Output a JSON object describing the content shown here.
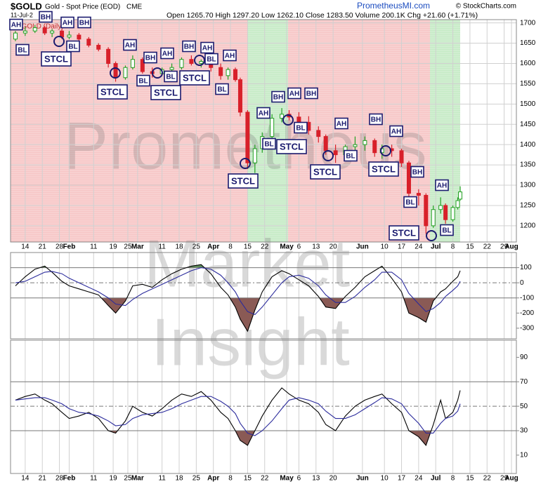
{
  "chart_data": [
    {
      "type": "candlestick",
      "title": "$GOLD",
      "subtitle": "Gold - Spot Price (EOD)",
      "exchange": "CME",
      "date": "11-Jul-2",
      "quote": "Open 1265.70  High 1297.20  Low 1262.10  Close 1283.50  Volume 200.1K  Chg +21.60 (+1.71%)",
      "source": "PrometheusMI.com",
      "credit": "© StockCharts.com",
      "series_name": "$GOLD (Daily)",
      "watermark": [
        "Prometheus",
        "Market",
        "Insight"
      ],
      "annotations": [
        "AH",
        "BL",
        "BH",
        "AH",
        "BH",
        "STCL",
        "BL",
        "STCL",
        "AH",
        "BH",
        "BL",
        "AH",
        "STCL",
        "BL",
        "BH",
        "AH",
        "STCL",
        "BL",
        "AH",
        "BL",
        "STCL",
        "AH",
        "BL",
        "BH",
        "AH",
        "BH",
        "STCL",
        "BL",
        "AH",
        "STCL",
        "BL",
        "BH",
        "STCL",
        "AH",
        "BL",
        "BH",
        "AH",
        "STCL",
        "BL"
      ],
      "x": [
        10,
        14,
        18,
        22,
        25,
        29,
        32,
        36,
        40,
        44,
        48,
        51,
        55,
        58,
        62,
        66,
        70,
        74,
        78,
        82,
        86,
        90,
        94,
        97,
        100,
        102,
        105,
        108,
        111,
        115,
        119,
        122,
        126,
        130,
        134,
        137,
        141,
        145,
        149,
        153,
        157,
        160,
        164,
        168,
        171,
        175,
        178,
        181,
        184,
        186,
        189,
        191,
        192
      ],
      "open": [
        1660,
        1675,
        1680,
        1688,
        1675,
        1680,
        1665,
        1670,
        1660,
        1645,
        1635,
        1600,
        1565,
        1590,
        1610,
        1580,
        1575,
        1585,
        1590,
        1610,
        1600,
        1605,
        1590,
        1570,
        1585,
        1560,
        1480,
        1355,
        1390,
        1420,
        1465,
        1475,
        1468,
        1455,
        1435,
        1420,
        1385,
        1375,
        1395,
        1400,
        1410,
        1380,
        1390,
        1385,
        1355,
        1280,
        1275,
        1200,
        1240,
        1250,
        1215,
        1245,
        1265.7
      ],
      "high": [
        1680,
        1690,
        1695,
        1692,
        1685,
        1685,
        1680,
        1675,
        1665,
        1650,
        1640,
        1605,
        1595,
        1620,
        1615,
        1590,
        1590,
        1600,
        1615,
        1620,
        1610,
        1610,
        1600,
        1590,
        1590,
        1565,
        1485,
        1400,
        1430,
        1475,
        1490,
        1485,
        1480,
        1470,
        1445,
        1425,
        1400,
        1400,
        1420,
        1420,
        1415,
        1400,
        1400,
        1390,
        1360,
        1290,
        1280,
        1250,
        1270,
        1255,
        1250,
        1270,
        1297.2
      ],
      "low": [
        1655,
        1668,
        1675,
        1670,
        1665,
        1660,
        1660,
        1650,
        1640,
        1630,
        1590,
        1555,
        1560,
        1585,
        1575,
        1565,
        1570,
        1580,
        1585,
        1595,
        1590,
        1580,
        1560,
        1560,
        1555,
        1470,
        1340,
        1330,
        1380,
        1410,
        1455,
        1460,
        1445,
        1425,
        1405,
        1375,
        1355,
        1365,
        1385,
        1385,
        1370,
        1365,
        1370,
        1345,
        1270,
        1250,
        1180,
        1195,
        1230,
        1205,
        1210,
        1240,
        1262.1
      ],
      "close": [
        1675,
        1680,
        1688,
        1675,
        1680,
        1665,
        1670,
        1660,
        1645,
        1635,
        1600,
        1565,
        1590,
        1610,
        1580,
        1575,
        1585,
        1590,
        1610,
        1600,
        1605,
        1590,
        1570,
        1585,
        1560,
        1480,
        1355,
        1390,
        1420,
        1465,
        1475,
        1468,
        1455,
        1435,
        1420,
        1385,
        1375,
        1395,
        1400,
        1410,
        1380,
        1390,
        1385,
        1355,
        1280,
        1275,
        1200,
        1240,
        1250,
        1215,
        1245,
        1262,
        1283.5
      ],
      "up_color": "#22a022",
      "down_color": "#d8202a",
      "xlim": [
        8,
        215
      ],
      "ylim": [
        1160,
        1708
      ],
      "xticks": [
        {
          "value": 14,
          "label": "14"
        },
        {
          "value": 21,
          "label": "21"
        },
        {
          "value": 28,
          "label": "28"
        },
        {
          "value": 32,
          "label": "Feb"
        },
        {
          "value": 42,
          "label": "11"
        },
        {
          "value": 50,
          "label": "19"
        },
        {
          "value": 56,
          "label": "25"
        },
        {
          "value": 60,
          "label": "Mar"
        },
        {
          "value": 70,
          "label": "11"
        },
        {
          "value": 77,
          "label": "18"
        },
        {
          "value": 84,
          "label": "25"
        },
        {
          "value": 91,
          "label": "Apr"
        },
        {
          "value": 98,
          "label": "8"
        },
        {
          "value": 105,
          "label": "15"
        },
        {
          "value": 112,
          "label": "22"
        },
        {
          "value": 121,
          "label": "May"
        },
        {
          "value": 126,
          "label": "6"
        },
        {
          "value": 133,
          "label": "13"
        },
        {
          "value": 140,
          "label": "20"
        },
        {
          "value": 152,
          "label": "Jun"
        },
        {
          "value": 161,
          "label": "10"
        },
        {
          "value": 168,
          "label": "17"
        },
        {
          "value": 175,
          "label": "24"
        },
        {
          "value": 182,
          "label": "Jul"
        },
        {
          "value": 189,
          "label": "8"
        },
        {
          "value": 196,
          "label": "15"
        },
        {
          "value": 203,
          "label": "22"
        },
        {
          "value": 210,
          "label": "29"
        },
        {
          "value": 213,
          "label": "Aug"
        }
      ],
      "yticks": [
        1200,
        1250,
        1300,
        1350,
        1400,
        1450,
        1500,
        1550,
        1600,
        1650,
        1700
      ],
      "grid": true
    },
    {
      "type": "line",
      "x": [
        10,
        14,
        18,
        22,
        25,
        29,
        32,
        36,
        40,
        44,
        48,
        51,
        55,
        58,
        62,
        66,
        70,
        74,
        78,
        82,
        86,
        90,
        94,
        97,
        100,
        102,
        105,
        108,
        111,
        115,
        119,
        122,
        126,
        130,
        134,
        137,
        141,
        145,
        149,
        153,
        157,
        160,
        164,
        168,
        171,
        175,
        178,
        181,
        184,
        186,
        189,
        191,
        192
      ],
      "series": [
        {
          "color": "#000000",
          "values": [
            -20,
            40,
            90,
            110,
            70,
            10,
            -20,
            -40,
            -60,
            -80,
            -150,
            -200,
            -120,
            -20,
            -10,
            -30,
            20,
            60,
            90,
            110,
            120,
            60,
            -30,
            -80,
            -160,
            -240,
            -320,
            -180,
            -60,
            40,
            80,
            60,
            20,
            -20,
            -90,
            -160,
            -170,
            -90,
            -30,
            40,
            80,
            110,
            30,
            -60,
            -200,
            -230,
            -260,
            -120,
            -60,
            -40,
            10,
            40,
            80
          ]
        },
        {
          "color": "#2b2b9c",
          "values": [
            0,
            10,
            40,
            70,
            75,
            60,
            30,
            0,
            -30,
            -60,
            -100,
            -140,
            -150,
            -110,
            -70,
            -40,
            -10,
            20,
            50,
            80,
            100,
            90,
            50,
            0,
            -60,
            -120,
            -190,
            -210,
            -160,
            -80,
            0,
            40,
            50,
            30,
            -20,
            -80,
            -130,
            -130,
            -90,
            -30,
            20,
            70,
            70,
            20,
            -70,
            -140,
            -190,
            -170,
            -130,
            -90,
            -50,
            -20,
            10
          ]
        }
      ],
      "upper": 100,
      "lower": -100,
      "center": 0,
      "upper_color": "#5e8c5a",
      "lower_color": "#8a5a55",
      "ylim": [
        -370,
        200
      ],
      "yticks": [
        100,
        0,
        -100,
        -200,
        -300
      ]
    },
    {
      "type": "line",
      "x": [
        10,
        14,
        18,
        22,
        25,
        29,
        32,
        36,
        40,
        44,
        48,
        51,
        55,
        58,
        62,
        66,
        70,
        74,
        78,
        82,
        86,
        90,
        94,
        97,
        100,
        102,
        105,
        108,
        111,
        115,
        119,
        122,
        126,
        130,
        134,
        137,
        141,
        145,
        149,
        153,
        157,
        160,
        164,
        168,
        171,
        175,
        178,
        181,
        184,
        186,
        189,
        191,
        192
      ],
      "series": [
        {
          "color": "#000000",
          "values": [
            55,
            58,
            60,
            55,
            52,
            45,
            40,
            42,
            45,
            40,
            30,
            28,
            38,
            50,
            45,
            42,
            48,
            55,
            60,
            58,
            62,
            55,
            45,
            40,
            30,
            22,
            18,
            30,
            42,
            55,
            65,
            60,
            55,
            52,
            45,
            35,
            30,
            42,
            50,
            55,
            58,
            60,
            52,
            45,
            30,
            25,
            18,
            35,
            55,
            40,
            45,
            55,
            63
          ]
        },
        {
          "color": "#2b2b9c",
          "values": [
            55,
            56,
            57,
            57,
            55,
            52,
            48,
            45,
            44,
            42,
            38,
            34,
            35,
            40,
            43,
            44,
            45,
            48,
            52,
            55,
            58,
            58,
            54,
            50,
            44,
            36,
            28,
            26,
            30,
            38,
            48,
            55,
            57,
            55,
            52,
            46,
            40,
            40,
            43,
            48,
            53,
            57,
            56,
            52,
            44,
            36,
            28,
            28,
            36,
            40,
            42,
            46,
            52
          ]
        }
      ],
      "upper": 70,
      "lower": 30,
      "center": 50,
      "lower_color": "#8a5a55",
      "ylim": [
        -5,
        104
      ],
      "yticks": [
        10,
        30,
        50,
        70,
        90
      ]
    }
  ]
}
